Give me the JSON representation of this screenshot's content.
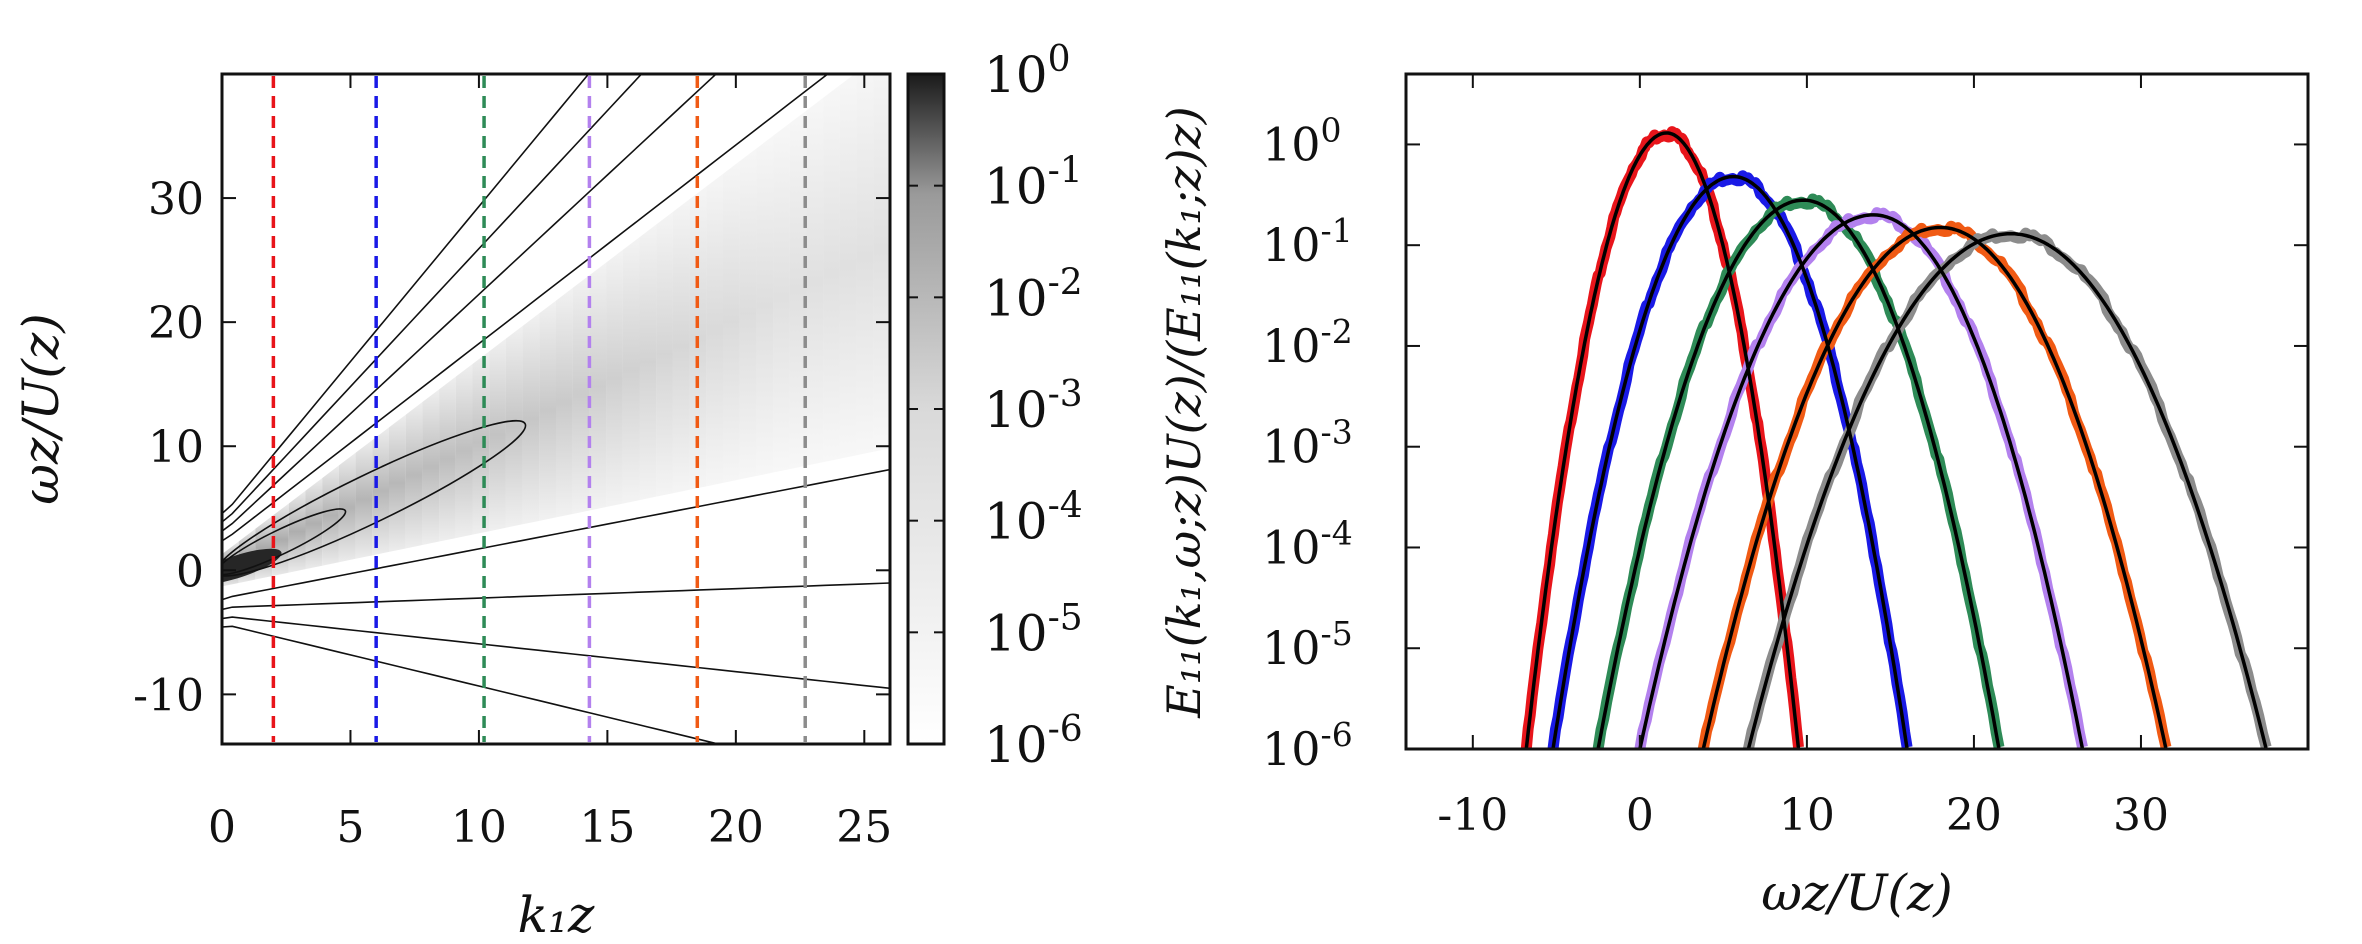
{
  "chart_data": [
    {
      "type": "heatmap",
      "title": "",
      "xlabel": "k₁z",
      "ylabel": "ωz/U(z)",
      "xlim": [
        0,
        26
      ],
      "ylim": [
        -14,
        40
      ],
      "xticks": [
        0,
        5,
        10,
        15,
        20,
        25
      ],
      "xtick_labels": [
        "0",
        "5",
        "10",
        "15",
        "20",
        "25"
      ],
      "yticks": [
        -10,
        0,
        10,
        20,
        30
      ],
      "ytick_labels": [
        "-10",
        "0",
        "10",
        "20",
        "30"
      ],
      "ridge": {
        "slope": 1.0,
        "description": "energy concentrated along ωz/U ≈ k₁z, spreading with k₁z"
      },
      "colorbar": {
        "scale": "log",
        "range": [
          1e-06,
          1
        ],
        "labels": [
          "10^0",
          "10^-1",
          "10^-2",
          "10^-3",
          "10^-4",
          "10^-5",
          "10^-6"
        ],
        "colormap": [
          "#ffffff",
          "#1a1a1a"
        ]
      },
      "contour_half_widths": [
        0.8,
        1.6,
        2.6,
        4.0,
        5.3,
        6.5
      ],
      "vertical_lines": [
        {
          "x": 2,
          "color": "#e8151b"
        },
        {
          "x": 6,
          "color": "#1a1ae6"
        },
        {
          "x": 10.2,
          "color": "#2e8b57"
        },
        {
          "x": 14.3,
          "color": "#b381ee"
        },
        {
          "x": 18.5,
          "color": "#f05a14"
        },
        {
          "x": 22.7,
          "color": "#8c8c8c"
        }
      ]
    },
    {
      "type": "line",
      "title": "",
      "xlabel": "ωz/U(z)",
      "ylabel": "E₁₁(k₁,ω;z)U(z)/(E₁₁(k₁;z)z)",
      "xscale": "linear",
      "yscale": "log",
      "xlim": [
        -14,
        40
      ],
      "ylim": [
        1e-06,
        5
      ],
      "xticks": [
        -10,
        0,
        10,
        20,
        30
      ],
      "xtick_labels": [
        "-10",
        "0",
        "10",
        "20",
        "30"
      ],
      "yticks": [
        1,
        0.1,
        0.01,
        0.001,
        0.0001,
        1e-05,
        1e-06
      ],
      "ytick_labels": [
        "10^0",
        "10^-1",
        "10^-2",
        "10^-3",
        "10^-4",
        "10^-5",
        "10^-6"
      ],
      "series": [
        {
          "k1z": 2,
          "color": "#e8151b",
          "peak_x": 1.6,
          "peak_y": 1.3,
          "zero_x_left": -6.8,
          "zero_x_right": 9.5
        },
        {
          "k1z": 6,
          "color": "#1a1ae6",
          "peak_x": 5.6,
          "peak_y": 0.48,
          "zero_x_left": -5.2,
          "zero_x_right": 16.0
        },
        {
          "k1z": 10.2,
          "color": "#2e8b57",
          "peak_x": 9.8,
          "peak_y": 0.28,
          "zero_x_left": -2.5,
          "zero_x_right": 21.5
        },
        {
          "k1z": 14.3,
          "color": "#b381ee",
          "peak_x": 14.0,
          "peak_y": 0.2,
          "zero_x_left": 0.0,
          "zero_x_right": 26.5
        },
        {
          "k1z": 18.5,
          "color": "#f05a14",
          "peak_x": 18.0,
          "peak_y": 0.15,
          "zero_x_left": 3.8,
          "zero_x_right": 31.5
        },
        {
          "k1z": 22.7,
          "color": "#8c8c8c",
          "peak_x": 22.2,
          "peak_y": 0.13,
          "zero_x_left": 6.5,
          "zero_x_right": 37.5
        }
      ],
      "fit_color": "#000000"
    }
  ]
}
